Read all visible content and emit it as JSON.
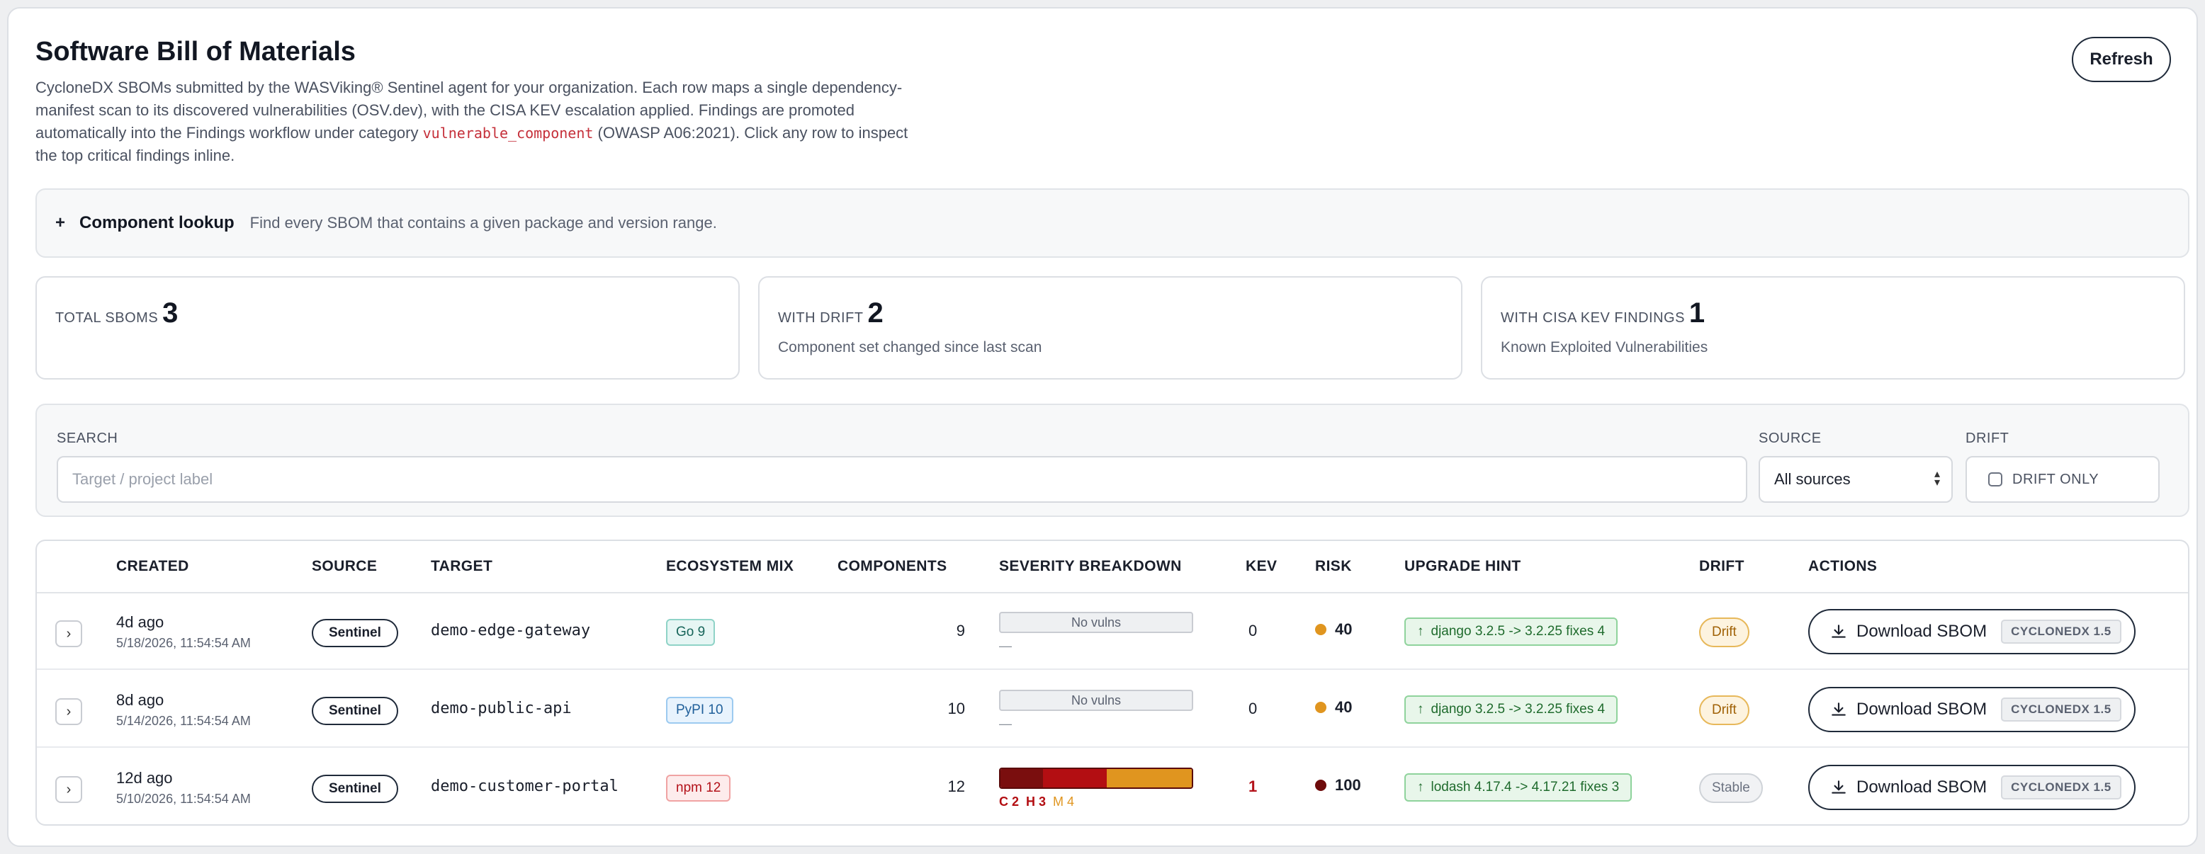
{
  "header": {
    "title": "Software Bill of Materials",
    "desc_part1": "CycloneDX SBOMs submitted by the WASViking® Sentinel agent for your organization. Each row maps a single dependency-manifest scan to its discovered vulnerabilities (OSV.dev), with the CISA KEV escalation applied. Findings are promoted automatically into the Findings workflow under category ",
    "desc_code": "vulnerable_component",
    "desc_part2": " (OWASP A06:2021). Click any row to inspect the top critical findings inline.",
    "refresh_label": "Refresh"
  },
  "lookup": {
    "toggle": "+",
    "title": "Component lookup",
    "hint": "Find every SBOM that contains a given package and version range."
  },
  "stats": [
    {
      "label": "TOTAL SBOMS",
      "value": "3",
      "sub": ""
    },
    {
      "label": "WITH DRIFT",
      "value": "2",
      "sub": "Component set changed since last scan"
    },
    {
      "label": "WITH CISA KEV FINDINGS",
      "value": "1",
      "sub": "Known Exploited Vulnerabilities"
    }
  ],
  "filters": {
    "search_label": "SEARCH",
    "search_placeholder": "Target / project label",
    "source_label": "SOURCE",
    "source_value": "All sources",
    "drift_label": "DRIFT",
    "drift_only_label": "DRIFT ONLY"
  },
  "table": {
    "headers": {
      "created": "CREATED",
      "source": "SOURCE",
      "target": "TARGET",
      "ecosystem": "ECOSYSTEM MIX",
      "components": "COMPONENTS",
      "severity": "SEVERITY BREAKDOWN",
      "kev": "KEV",
      "risk": "RISK",
      "hint": "UPGRADE HINT",
      "drift": "DRIFT",
      "actions": "ACTIONS"
    },
    "rows": [
      {
        "expander": "›",
        "created_rel": "4d ago",
        "created_abs": "5/18/2026, 11:54:54 AM",
        "source": "Sentinel",
        "target": "demo-edge-gateway",
        "ecosystem": "Go 9",
        "components": "9",
        "severity_none": "No vulns",
        "severity_sub": "—",
        "kev": "0",
        "risk": "40",
        "hint_arrow": "↑",
        "hint": "django 3.2.5 -> 3.2.25 fixes 4",
        "drift": "Drift",
        "download": "Download SBOM",
        "format": "CYCLONEDX 1.5"
      },
      {
        "expander": "›",
        "created_rel": "8d ago",
        "created_abs": "5/14/2026, 11:54:54 AM",
        "source": "Sentinel",
        "target": "demo-public-api",
        "ecosystem": "PyPI 10",
        "components": "10",
        "severity_none": "No vulns",
        "severity_sub": "—",
        "kev": "0",
        "risk": "40",
        "hint_arrow": "↑",
        "hint": "django 3.2.5 -> 3.2.25 fixes 4",
        "drift": "Drift",
        "download": "Download SBOM",
        "format": "CYCLONEDX 1.5"
      },
      {
        "expander": "›",
        "created_rel": "12d ago",
        "created_abs": "5/10/2026, 11:54:54 AM",
        "source": "Sentinel",
        "target": "demo-customer-portal",
        "ecosystem": "npm 12",
        "components": "12",
        "severity": {
          "critical": 2,
          "high": 3,
          "medium": 4
        },
        "sev_c": "C 2",
        "sev_h": "H 3",
        "sev_m": "M 4",
        "kev": "1",
        "risk": "100",
        "hint_arrow": "↑",
        "hint": "lodash 4.17.4 -> 4.17.21 fixes 3",
        "drift": "Stable",
        "download": "Download SBOM",
        "format": "CYCLONEDX 1.5"
      }
    ]
  },
  "colors": {
    "critical": "#7a0e0e",
    "high": "#b30e12",
    "medium": "#e0951f",
    "risk_medium": "#e0951f",
    "risk_critical": "#6e0b0b",
    "kev_alert": "#b3121a",
    "go_bg": "#e6f6f4",
    "go_border": "#8fd3c7",
    "go_text": "#17655a",
    "pypi_bg": "#e8f3fd",
    "pypi_border": "#9ccaf0",
    "pypi_text": "#1f5f9a",
    "npm_bg": "#fdecec",
    "npm_border": "#f0a3a3",
    "npm_text": "#b3121a",
    "drift_bg": "#fdf3df",
    "drift_border": "#e7b85a",
    "drift_text": "#a06106",
    "stable_bg": "#f1f2f4",
    "stable_border": "#cfd3d8",
    "stable_text": "#6b7280"
  }
}
